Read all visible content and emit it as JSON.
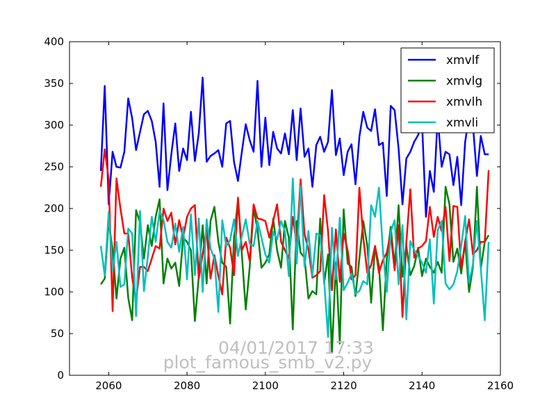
{
  "chart_data": {
    "type": "line",
    "xlim": [
      2050,
      2160
    ],
    "ylim": [
      0,
      400
    ],
    "x_ticks": [
      2060,
      2080,
      2100,
      2120,
      2140,
      2160
    ],
    "y_ticks": [
      0,
      50,
      100,
      150,
      200,
      250,
      300,
      350,
      400
    ],
    "grid": false,
    "legend_position": "top-right",
    "x": [
      2058,
      2059,
      2060,
      2061,
      2062,
      2063,
      2064,
      2065,
      2066,
      2067,
      2068,
      2069,
      2070,
      2071,
      2072,
      2073,
      2074,
      2075,
      2076,
      2077,
      2078,
      2079,
      2080,
      2081,
      2082,
      2083,
      2084,
      2085,
      2086,
      2087,
      2088,
      2089,
      2090,
      2091,
      2092,
      2093,
      2094,
      2095,
      2096,
      2097,
      2098,
      2099,
      2100,
      2101,
      2102,
      2103,
      2104,
      2105,
      2106,
      2107,
      2108,
      2109,
      2110,
      2111,
      2112,
      2113,
      2114,
      2115,
      2116,
      2117,
      2118,
      2119,
      2120,
      2121,
      2122,
      2123,
      2124,
      2125,
      2126,
      2127,
      2128,
      2129,
      2130,
      2131,
      2132,
      2133,
      2134,
      2135,
      2136,
      2137,
      2138,
      2139,
      2140,
      2141,
      2142,
      2143,
      2144,
      2145,
      2146,
      2147,
      2148,
      2149,
      2150,
      2151,
      2152,
      2153,
      2154,
      2155,
      2156,
      2157
    ],
    "series": [
      {
        "name": "xmvlf",
        "color": "#0000ff",
        "values": [
          245,
          347,
          205,
          268,
          250,
          249,
          268,
          332,
          308,
          270,
          292,
          313,
          317,
          305,
          280,
          226,
          326,
          222,
          265,
          302,
          245,
          272,
          258,
          316,
          257,
          290,
          357,
          256,
          263,
          266,
          270,
          250,
          302,
          305,
          256,
          233,
          268,
          301,
          282,
          268,
          353,
          250,
          309,
          252,
          292,
          272,
          266,
          290,
          265,
          318,
          258,
          320,
          262,
          272,
          226,
          276,
          286,
          268,
          280,
          342,
          264,
          284,
          240,
          268,
          277,
          229,
          286,
          316,
          297,
          293,
          319,
          276,
          279,
          215,
          323,
          318,
          272,
          205,
          260,
          268,
          280,
          288,
          302,
          190,
          245,
          220,
          310,
          250,
          268,
          265,
          228,
          262,
          204,
          280,
          310,
          300,
          239,
          287,
          265,
          265
        ]
      },
      {
        "name": "xmvlg",
        "color": "#008000",
        "values": [
          109,
          116,
          185,
          150,
          92,
          140,
          153,
          93,
          66,
          198,
          183,
          140,
          180,
          155,
          190,
          211,
          110,
          140,
          128,
          135,
          107,
          165,
          160,
          150,
          65,
          118,
          180,
          110,
          185,
          202,
          160,
          135,
          130,
          62,
          165,
          210,
          145,
          79,
          130,
          200,
          175,
          129,
          135,
          145,
          188,
          150,
          129,
          185,
          165,
          55,
          185,
          147,
          141,
          92,
          101,
          97,
          188,
          110,
          145,
          27,
          135,
          38,
          199,
          134,
          130,
          95,
          140,
          185,
          156,
          87,
          155,
          131,
          54,
          140,
          178,
          130,
          204,
          118,
          155,
          120,
          131,
          153,
          119,
          140,
          130,
          123,
          136,
          123,
          226,
          205,
          136,
          152,
          122,
          160,
          100,
          130,
          226,
          128,
          160,
          168
        ]
      },
      {
        "name": "xmvlh",
        "color": "#ff0000",
        "values": [
          226,
          271,
          235,
          77,
          236,
          200,
          170,
          170,
          117,
          90,
          130,
          130,
          125,
          140,
          155,
          152,
          200,
          185,
          195,
          157,
          186,
          165,
          190,
          200,
          204,
          116,
          145,
          175,
          116,
          144,
          119,
          97,
          165,
          153,
          120,
          213,
          150,
          160,
          137,
          205,
          188,
          187,
          185,
          165,
          185,
          205,
          160,
          150,
          140,
          190,
          157,
          235,
          169,
          151,
          117,
          120,
          125,
          216,
          173,
          102,
          175,
          112,
          170,
          150,
          115,
          120,
          225,
          165,
          123,
          132,
          155,
          123,
          138,
          147,
          170,
          126,
          180,
          70,
          160,
          223,
          141,
          152,
          155,
          161,
          202,
          166,
          190,
          173,
          202,
          137,
          203,
          202,
          128,
          160,
          187,
          145,
          150,
          160,
          160,
          246
        ]
      },
      {
        "name": "xmvli",
        "color": "#00bfbf",
        "values": [
          155,
          120,
          196,
          126,
          160,
          106,
          109,
          176,
          170,
          71,
          197,
          101,
          142,
          190,
          160,
          197,
          186,
          160,
          153,
          182,
          148,
          178,
          115,
          193,
          120,
          188,
          100,
          187,
          152,
          140,
          76,
          186,
          155,
          162,
          187,
          143,
          167,
          187,
          158,
          155,
          185,
          165,
          145,
          135,
          172,
          163,
          185,
          173,
          119,
          236,
          134,
          227,
          130,
          173,
          119,
          170,
          168,
          114,
          46,
          177,
          115,
          189,
          102,
          111,
          122,
          98,
          101,
          113,
          109,
          204,
          190,
          225,
          150,
          100,
          172,
          186,
          109,
          180,
          67,
          161,
          150,
          143,
          135,
          123,
          163,
          86,
          174,
          185,
          110,
          103,
          109,
          125,
          155,
          191,
          111,
          133,
          185,
          128,
          66,
          160
        ]
      }
    ],
    "watermark_date": "04/01/2017 17:33",
    "watermark_script": "plot_famous_smb_v2.py"
  }
}
